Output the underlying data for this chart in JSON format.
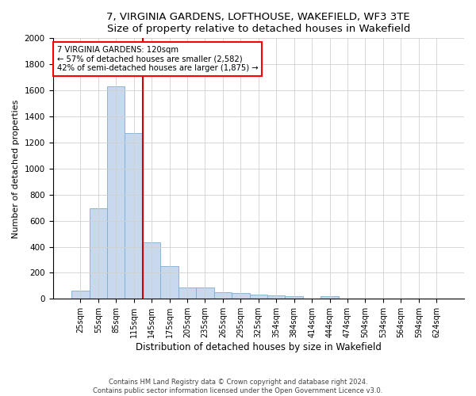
{
  "title": "7, VIRGINIA GARDENS, LOFTHOUSE, WAKEFIELD, WF3 3TE",
  "subtitle": "Size of property relative to detached houses in Wakefield",
  "xlabel": "Distribution of detached houses by size in Wakefield",
  "ylabel": "Number of detached properties",
  "categories": [
    "25sqm",
    "55sqm",
    "85sqm",
    "115sqm",
    "145sqm",
    "175sqm",
    "205sqm",
    "235sqm",
    "265sqm",
    "295sqm",
    "325sqm",
    "354sqm",
    "384sqm",
    "414sqm",
    "444sqm",
    "474sqm",
    "504sqm",
    "534sqm",
    "564sqm",
    "594sqm",
    "624sqm"
  ],
  "values": [
    65,
    695,
    1630,
    1275,
    435,
    253,
    88,
    88,
    50,
    45,
    30,
    28,
    18,
    0,
    18,
    0,
    0,
    0,
    0,
    0,
    0
  ],
  "bar_color": "#c8d9ee",
  "bar_edge_color": "#7aafd4",
  "property_label": "7 VIRGINIA GARDENS: 120sqm",
  "annotation_line1": "← 57% of detached houses are smaller (2,582)",
  "annotation_line2": "42% of semi-detached houses are larger (1,875) →",
  "vline_color": "#cc0000",
  "vline_index": 3,
  "ylim": [
    0,
    2000
  ],
  "yticks": [
    0,
    200,
    400,
    600,
    800,
    1000,
    1200,
    1400,
    1600,
    1800,
    2000
  ],
  "grid_color": "#d0d0d0",
  "background_color": "#ffffff",
  "footer_line1": "Contains HM Land Registry data © Crown copyright and database right 2024.",
  "footer_line2": "Contains public sector information licensed under the Open Government Licence v3.0."
}
